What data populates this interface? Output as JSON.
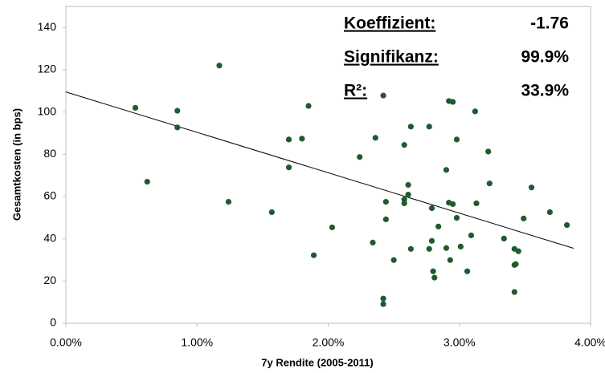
{
  "chart_data": {
    "type": "scatter",
    "xlabel": "7y Rendite (2005-2011)",
    "ylabel": "Gesamtkosten (in bps)",
    "color": "#1e5b2f",
    "x": [
      0.53,
      0.62,
      0.85,
      0.85,
      1.17,
      1.24,
      1.57,
      1.7,
      1.7,
      1.8,
      1.85,
      1.89,
      2.03,
      2.24,
      2.34,
      2.36,
      2.42,
      2.42,
      2.42,
      2.44,
      2.44,
      2.5,
      2.58,
      2.58,
      2.58,
      2.61,
      2.61,
      2.63,
      2.63,
      2.77,
      2.77,
      2.79,
      2.79,
      2.8,
      2.81,
      2.84,
      2.9,
      2.9,
      2.92,
      2.92,
      2.93,
      2.95,
      2.95,
      2.98,
      2.98,
      3.01,
      3.06,
      3.09,
      3.12,
      3.13,
      3.22,
      3.23,
      3.34,
      3.42,
      3.42,
      3.43,
      3.42,
      3.45,
      3.49,
      3.55,
      3.69,
      3.82
    ],
    "values": [
      102,
      67,
      100.6,
      92.7,
      122,
      57.5,
      52.6,
      87,
      73.8,
      87.4,
      102.9,
      32.2,
      45.4,
      78.7,
      38.2,
      87.8,
      107.8,
      11.7,
      9.1,
      57.5,
      49.2,
      29.9,
      84.4,
      58.6,
      56.8,
      65.5,
      60.9,
      93.1,
      35.2,
      93.1,
      35.2,
      54.5,
      39,
      24.6,
      21.6,
      45.8,
      72.6,
      35.6,
      105.2,
      57.1,
      29.9,
      104.8,
      56.4,
      49.9,
      87,
      36.3,
      24.6,
      41.6,
      100.3,
      56.8,
      81.3,
      66.2,
      40.1,
      35.2,
      27.6,
      28,
      14.8,
      34.1,
      49.6,
      64.3,
      52.6,
      46.5
    ],
    "trendline": {
      "x": [
        0,
        3.87
      ],
      "values": [
        109.5,
        35.5
      ],
      "color": "#000000"
    },
    "xlim": [
      0,
      4
    ],
    "ylim": [
      0,
      150
    ],
    "xticks": [
      {
        "value": 0,
        "label": "0.00%"
      },
      {
        "value": 1,
        "label": "1.00%"
      },
      {
        "value": 2,
        "label": "2.00%"
      },
      {
        "value": 3,
        "label": "3.00%"
      },
      {
        "value": 4,
        "label": "4.00%"
      }
    ],
    "yticks": [
      0,
      20,
      40,
      60,
      80,
      100,
      120,
      140
    ],
    "annotation_color": "#c0504d",
    "annotations": [
      {
        "label": "Koeffizient:",
        "value": "-1.76"
      },
      {
        "label": "Signifikanz:",
        "value": "99.9%"
      },
      {
        "label": "R²:",
        "value": "33.9%"
      }
    ]
  }
}
